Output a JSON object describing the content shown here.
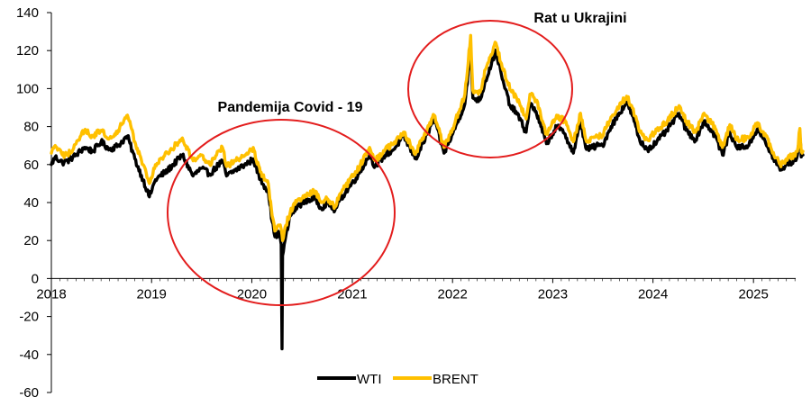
{
  "chart_data": {
    "type": "line",
    "title": "",
    "xlabel": "",
    "ylabel": "",
    "xlim": [
      "2018-01-01",
      "2025-06-30"
    ],
    "ylim": [
      -60,
      140
    ],
    "y_ticks": [
      -60,
      -40,
      -20,
      0,
      20,
      40,
      60,
      80,
      100,
      120,
      140
    ],
    "x_ticks": [
      "2018",
      "2019",
      "2020",
      "2021",
      "2022",
      "2023",
      "2024",
      "2025"
    ],
    "grid": false,
    "legend": {
      "placement": "bottom-center",
      "entries": [
        "WTI",
        "BRENT"
      ]
    },
    "annotations": [
      {
        "text": "Pandemija Covid - 19",
        "shape": "ellipse",
        "color": "#e31d1d"
      },
      {
        "text": "Rat u Ukrajini",
        "shape": "ellipse",
        "color": "#e31d1d"
      }
    ],
    "series": [
      {
        "name": "WTI",
        "color": "#000000",
        "points": [
          [
            "2018-01-01",
            60
          ],
          [
            "2018-01-15",
            64
          ],
          [
            "2018-02-10",
            61
          ],
          [
            "2018-03-01",
            62
          ],
          [
            "2018-04-01",
            65
          ],
          [
            "2018-05-01",
            69
          ],
          [
            "2018-06-01",
            67
          ],
          [
            "2018-07-01",
            72
          ],
          [
            "2018-08-01",
            68
          ],
          [
            "2018-09-01",
            70
          ],
          [
            "2018-10-05",
            75
          ],
          [
            "2018-11-01",
            63
          ],
          [
            "2018-12-01",
            52
          ],
          [
            "2018-12-24",
            43
          ],
          [
            "2019-01-15",
            52
          ],
          [
            "2019-03-01",
            57
          ],
          [
            "2019-04-23",
            65
          ],
          [
            "2019-06-01",
            54
          ],
          [
            "2019-07-01",
            58
          ],
          [
            "2019-08-01",
            55
          ],
          [
            "2019-09-16",
            62
          ],
          [
            "2019-10-01",
            54
          ],
          [
            "2019-11-01",
            57
          ],
          [
            "2019-12-20",
            61
          ],
          [
            "2020-01-06",
            63
          ],
          [
            "2020-02-01",
            52
          ],
          [
            "2020-03-01",
            46
          ],
          [
            "2020-03-15",
            30
          ],
          [
            "2020-03-25",
            22
          ],
          [
            "2020-04-10",
            24
          ],
          [
            "2020-04-17",
            18
          ],
          [
            "2020-04-20",
            -37
          ],
          [
            "2020-04-22",
            12
          ],
          [
            "2020-05-01",
            20
          ],
          [
            "2020-05-20",
            33
          ],
          [
            "2020-06-15",
            38
          ],
          [
            "2020-07-15",
            41
          ],
          [
            "2020-08-20",
            42
          ],
          [
            "2020-09-10",
            37
          ],
          [
            "2020-10-01",
            40
          ],
          [
            "2020-10-30",
            36
          ],
          [
            "2020-11-20",
            42
          ],
          [
            "2020-12-20",
            48
          ],
          [
            "2021-01-15",
            53
          ],
          [
            "2021-03-05",
            65
          ],
          [
            "2021-03-25",
            59
          ],
          [
            "2021-05-01",
            65
          ],
          [
            "2021-06-01",
            68
          ],
          [
            "2021-07-06",
            75
          ],
          [
            "2021-08-20",
            63
          ],
          [
            "2021-10-01",
            76
          ],
          [
            "2021-10-26",
            84
          ],
          [
            "2021-12-01",
            66
          ],
          [
            "2022-01-01",
            76
          ],
          [
            "2022-02-15",
            92
          ],
          [
            "2022-03-08",
            120
          ],
          [
            "2022-03-16",
            95
          ],
          [
            "2022-04-11",
            94
          ],
          [
            "2022-05-01",
            104
          ],
          [
            "2022-06-08",
            120
          ],
          [
            "2022-07-01",
            105
          ],
          [
            "2022-08-01",
            90
          ],
          [
            "2022-08-20",
            88
          ],
          [
            "2022-09-26",
            77
          ],
          [
            "2022-10-10",
            92
          ],
          [
            "2022-11-01",
            88
          ],
          [
            "2022-12-09",
            71
          ],
          [
            "2023-01-15",
            80
          ],
          [
            "2023-02-15",
            76
          ],
          [
            "2023-03-17",
            66
          ],
          [
            "2023-04-12",
            82
          ],
          [
            "2023-05-04",
            68
          ],
          [
            "2023-06-15",
            70
          ],
          [
            "2023-07-01",
            70
          ],
          [
            "2023-08-01",
            80
          ],
          [
            "2023-09-27",
            93
          ],
          [
            "2023-10-15",
            87
          ],
          [
            "2023-11-15",
            72
          ],
          [
            "2023-12-12",
            68
          ],
          [
            "2024-01-15",
            72
          ],
          [
            "2024-02-15",
            77
          ],
          [
            "2024-04-05",
            87
          ],
          [
            "2024-05-01",
            78
          ],
          [
            "2024-06-04",
            73
          ],
          [
            "2024-07-05",
            83
          ],
          [
            "2024-08-15",
            75
          ],
          [
            "2024-09-10",
            65
          ],
          [
            "2024-10-07",
            77
          ],
          [
            "2024-11-01",
            69
          ],
          [
            "2024-12-15",
            70
          ],
          [
            "2025-01-15",
            79
          ],
          [
            "2025-02-15",
            71
          ],
          [
            "2025-03-05",
            66
          ],
          [
            "2025-04-08",
            57
          ],
          [
            "2025-05-01",
            60
          ],
          [
            "2025-05-30",
            62
          ],
          [
            "2025-06-10",
            65
          ],
          [
            "2025-06-19",
            75
          ],
          [
            "2025-06-24",
            64
          ],
          [
            "2025-06-30",
            65
          ]
        ]
      },
      {
        "name": "BRENT",
        "color": "#ffc000",
        "points": [
          [
            "2018-01-01",
            66
          ],
          [
            "2018-01-15",
            70
          ],
          [
            "2018-02-10",
            65
          ],
          [
            "2018-03-01",
            65
          ],
          [
            "2018-04-01",
            71
          ],
          [
            "2018-05-01",
            78
          ],
          [
            "2018-06-01",
            75
          ],
          [
            "2018-07-01",
            78
          ],
          [
            "2018-08-01",
            74
          ],
          [
            "2018-09-01",
            78
          ],
          [
            "2018-10-05",
            86
          ],
          [
            "2018-11-01",
            72
          ],
          [
            "2018-12-01",
            60
          ],
          [
            "2018-12-24",
            50
          ],
          [
            "2019-01-15",
            60
          ],
          [
            "2019-03-01",
            66
          ],
          [
            "2019-04-23",
            74
          ],
          [
            "2019-06-01",
            62
          ],
          [
            "2019-07-01",
            65
          ],
          [
            "2019-08-01",
            60
          ],
          [
            "2019-09-16",
            69
          ],
          [
            "2019-10-01",
            59
          ],
          [
            "2019-11-01",
            62
          ],
          [
            "2019-12-20",
            66
          ],
          [
            "2020-01-06",
            69
          ],
          [
            "2020-02-01",
            56
          ],
          [
            "2020-03-01",
            50
          ],
          [
            "2020-03-15",
            33
          ],
          [
            "2020-03-25",
            25
          ],
          [
            "2020-04-10",
            28
          ],
          [
            "2020-04-17",
            26
          ],
          [
            "2020-04-20",
            23
          ],
          [
            "2020-04-22",
            20
          ],
          [
            "2020-05-01",
            27
          ],
          [
            "2020-05-20",
            35
          ],
          [
            "2020-06-15",
            41
          ],
          [
            "2020-07-15",
            44
          ],
          [
            "2020-08-20",
            46
          ],
          [
            "2020-09-10",
            40
          ],
          [
            "2020-10-01",
            42
          ],
          [
            "2020-10-30",
            38
          ],
          [
            "2020-11-20",
            45
          ],
          [
            "2020-12-20",
            51
          ],
          [
            "2021-01-15",
            56
          ],
          [
            "2021-03-05",
            69
          ],
          [
            "2021-03-25",
            62
          ],
          [
            "2021-05-01",
            68
          ],
          [
            "2021-06-01",
            71
          ],
          [
            "2021-07-06",
            77
          ],
          [
            "2021-08-20",
            66
          ],
          [
            "2021-10-01",
            79
          ],
          [
            "2021-10-26",
            86
          ],
          [
            "2021-12-01",
            69
          ],
          [
            "2022-01-01",
            79
          ],
          [
            "2022-02-15",
            97
          ],
          [
            "2022-03-08",
            128
          ],
          [
            "2022-03-16",
            99
          ],
          [
            "2022-04-11",
            98
          ],
          [
            "2022-05-01",
            110
          ],
          [
            "2022-06-08",
            124
          ],
          [
            "2022-07-01",
            111
          ],
          [
            "2022-08-01",
            99
          ],
          [
            "2022-08-20",
            96
          ],
          [
            "2022-09-26",
            84
          ],
          [
            "2022-10-10",
            97
          ],
          [
            "2022-11-01",
            94
          ],
          [
            "2022-12-09",
            76
          ],
          [
            "2023-01-15",
            86
          ],
          [
            "2023-02-15",
            83
          ],
          [
            "2023-03-17",
            72
          ],
          [
            "2023-04-12",
            87
          ],
          [
            "2023-05-04",
            72
          ],
          [
            "2023-06-15",
            75
          ],
          [
            "2023-07-01",
            75
          ],
          [
            "2023-08-01",
            85
          ],
          [
            "2023-09-27",
            96
          ],
          [
            "2023-10-15",
            91
          ],
          [
            "2023-11-15",
            77
          ],
          [
            "2023-12-12",
            73
          ],
          [
            "2024-01-15",
            78
          ],
          [
            "2024-02-15",
            82
          ],
          [
            "2024-04-05",
            91
          ],
          [
            "2024-05-01",
            83
          ],
          [
            "2024-06-04",
            77
          ],
          [
            "2024-07-05",
            87
          ],
          [
            "2024-08-15",
            79
          ],
          [
            "2024-09-10",
            69
          ],
          [
            "2024-10-07",
            81
          ],
          [
            "2024-11-01",
            73
          ],
          [
            "2024-12-15",
            74
          ],
          [
            "2025-01-15",
            82
          ],
          [
            "2025-02-15",
            75
          ],
          [
            "2025-03-05",
            69
          ],
          [
            "2025-04-08",
            60
          ],
          [
            "2025-05-01",
            63
          ],
          [
            "2025-05-30",
            65
          ],
          [
            "2025-06-10",
            67
          ],
          [
            "2025-06-19",
            79
          ],
          [
            "2025-06-24",
            67
          ],
          [
            "2025-06-30",
            67
          ]
        ]
      }
    ]
  }
}
